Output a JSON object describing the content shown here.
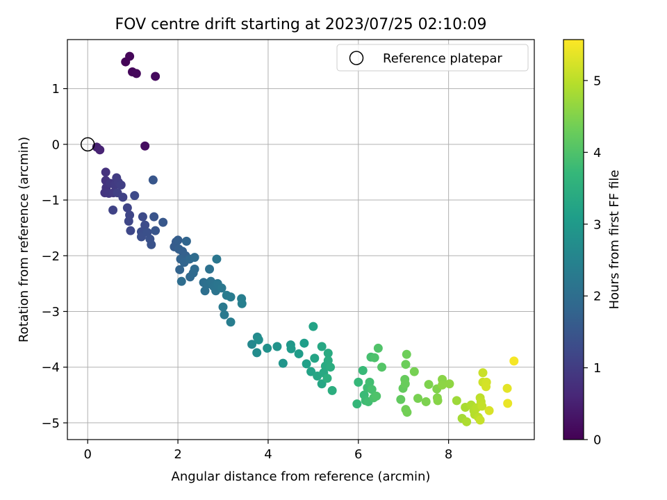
{
  "chart_data": {
    "type": "scatter",
    "title": "FOV centre drift starting at 2023/07/25 02:10:09",
    "xlabel": "Angular distance from reference (arcmin)",
    "ylabel": "Rotation from reference (arcmin)",
    "xlim": [
      -0.45,
      9.9
    ],
    "ylim": [
      -5.3,
      1.88
    ],
    "xticks": [
      0,
      2,
      4,
      6,
      8
    ],
    "yticks": [
      1,
      0,
      -1,
      -2,
      -3,
      -4,
      -5
    ],
    "xtick_labels": [
      "0",
      "2",
      "4",
      "6",
      "8"
    ],
    "ytick_labels": [
      "1",
      "0",
      "−1",
      "−2",
      "−3",
      "−4",
      "−5"
    ],
    "grid": true,
    "legend": {
      "position": "top-right",
      "entries": [
        "Reference platepar"
      ]
    },
    "reference_point": {
      "x": 0,
      "y": 0,
      "marker": "open-circle",
      "color": "#000000"
    },
    "colorbar": {
      "label": "Hours from first FF file",
      "range": [
        0,
        5.57
      ],
      "ticks": [
        0,
        1,
        2,
        3,
        4,
        5
      ],
      "tick_labels": [
        "0",
        "1",
        "2",
        "3",
        "4",
        "5"
      ],
      "colormap": "viridis",
      "stops": [
        "#440154",
        "#482878",
        "#3e4989",
        "#31688e",
        "#26828e",
        "#1f9e89",
        "#35b779",
        "#6ece58",
        "#b5de2b",
        "#fde725"
      ]
    },
    "series": [
      {
        "points": [
          {
            "x": 0.84,
            "y": 1.48,
            "t": 0.05
          },
          {
            "x": 0.93,
            "y": 1.58,
            "t": 0.08
          },
          {
            "x": 0.99,
            "y": 1.3,
            "t": 0.1
          },
          {
            "x": 1.08,
            "y": 1.27,
            "t": 0.12
          },
          {
            "x": 1.5,
            "y": 1.22,
            "t": 0.15
          },
          {
            "x": 1.27,
            "y": -0.03,
            "t": 0.2
          },
          {
            "x": 0.2,
            "y": -0.05,
            "t": 0.5
          },
          {
            "x": 0.27,
            "y": -0.1,
            "t": 0.55
          },
          {
            "x": 0.4,
            "y": -0.5,
            "t": 0.8
          },
          {
            "x": 0.4,
            "y": -0.65,
            "t": 0.82
          },
          {
            "x": 0.41,
            "y": -0.78,
            "t": 0.85
          },
          {
            "x": 0.38,
            "y": -0.87,
            "t": 0.87
          },
          {
            "x": 0.47,
            "y": -0.88,
            "t": 0.9
          },
          {
            "x": 0.5,
            "y": -0.7,
            "t": 0.92
          },
          {
            "x": 0.57,
            "y": -0.87,
            "t": 0.95
          },
          {
            "x": 0.6,
            "y": -0.73,
            "t": 0.97
          },
          {
            "x": 0.64,
            "y": -0.6,
            "t": 1.0
          },
          {
            "x": 0.68,
            "y": -0.68,
            "t": 1.02
          },
          {
            "x": 0.74,
            "y": -0.73,
            "t": 1.05
          },
          {
            "x": 0.66,
            "y": -0.87,
            "t": 1.07
          },
          {
            "x": 0.78,
            "y": -0.95,
            "t": 1.1
          },
          {
            "x": 0.56,
            "y": -1.18,
            "t": 1.12
          },
          {
            "x": 0.88,
            "y": -1.14,
            "t": 1.15
          },
          {
            "x": 0.93,
            "y": -1.27,
            "t": 1.18
          },
          {
            "x": 0.91,
            "y": -1.38,
            "t": 1.2
          },
          {
            "x": 0.95,
            "y": -1.55,
            "t": 1.22
          },
          {
            "x": 1.04,
            "y": -0.92,
            "t": 1.25
          },
          {
            "x": 1.22,
            "y": -1.3,
            "t": 1.28
          },
          {
            "x": 1.27,
            "y": -1.45,
            "t": 1.3
          },
          {
            "x": 1.19,
            "y": -1.57,
            "t": 1.32
          },
          {
            "x": 1.19,
            "y": -1.66,
            "t": 1.35
          },
          {
            "x": 1.32,
            "y": -1.58,
            "t": 1.37
          },
          {
            "x": 1.38,
            "y": -1.7,
            "t": 1.4
          },
          {
            "x": 1.41,
            "y": -1.8,
            "t": 1.42
          },
          {
            "x": 1.47,
            "y": -1.3,
            "t": 1.45
          },
          {
            "x": 1.5,
            "y": -1.55,
            "t": 1.47
          },
          {
            "x": 1.45,
            "y": -0.64,
            "t": 1.5
          },
          {
            "x": 1.67,
            "y": -1.4,
            "t": 1.52
          },
          {
            "x": 1.96,
            "y": -1.75,
            "t": 1.6
          },
          {
            "x": 1.92,
            "y": -1.84,
            "t": 1.62
          },
          {
            "x": 2.0,
            "y": -1.72,
            "t": 1.65
          },
          {
            "x": 2.02,
            "y": -1.88,
            "t": 1.67
          },
          {
            "x": 2.1,
            "y": -1.92,
            "t": 1.7
          },
          {
            "x": 2.17,
            "y": -2.0,
            "t": 1.72
          },
          {
            "x": 2.06,
            "y": -2.06,
            "t": 1.75
          },
          {
            "x": 2.04,
            "y": -2.25,
            "t": 1.77
          },
          {
            "x": 2.14,
            "y": -2.12,
            "t": 1.8
          },
          {
            "x": 2.19,
            "y": -1.74,
            "t": 1.82
          },
          {
            "x": 2.26,
            "y": -2.06,
            "t": 1.85
          },
          {
            "x": 2.27,
            "y": -2.38,
            "t": 1.87
          },
          {
            "x": 2.34,
            "y": -2.31,
            "t": 1.9
          },
          {
            "x": 2.37,
            "y": -2.24,
            "t": 1.92
          },
          {
            "x": 2.37,
            "y": -2.03,
            "t": 1.95
          },
          {
            "x": 2.08,
            "y": -2.46,
            "t": 1.97
          },
          {
            "x": 2.57,
            "y": -2.48,
            "t": 2.0
          },
          {
            "x": 2.6,
            "y": -2.63,
            "t": 2.02
          },
          {
            "x": 2.65,
            "y": -2.51,
            "t": 2.05
          },
          {
            "x": 2.7,
            "y": -2.24,
            "t": 2.07
          },
          {
            "x": 2.73,
            "y": -2.46,
            "t": 2.1
          },
          {
            "x": 2.79,
            "y": -2.55,
            "t": 2.12
          },
          {
            "x": 2.84,
            "y": -2.63,
            "t": 2.15
          },
          {
            "x": 2.88,
            "y": -2.5,
            "t": 2.17
          },
          {
            "x": 2.86,
            "y": -2.06,
            "t": 2.2
          },
          {
            "x": 2.97,
            "y": -2.58,
            "t": 2.22
          },
          {
            "x": 3.0,
            "y": -2.92,
            "t": 2.25
          },
          {
            "x": 3.03,
            "y": -3.06,
            "t": 2.27
          },
          {
            "x": 3.08,
            "y": -2.71,
            "t": 2.3
          },
          {
            "x": 3.17,
            "y": -2.74,
            "t": 2.32
          },
          {
            "x": 3.17,
            "y": -3.19,
            "t": 2.35
          },
          {
            "x": 3.41,
            "y": -2.77,
            "t": 2.37
          },
          {
            "x": 3.42,
            "y": -2.86,
            "t": 2.4
          },
          {
            "x": 3.64,
            "y": -3.59,
            "t": 2.6
          },
          {
            "x": 3.76,
            "y": -3.46,
            "t": 2.65
          },
          {
            "x": 3.75,
            "y": -3.74,
            "t": 2.7
          },
          {
            "x": 3.79,
            "y": -3.51,
            "t": 2.75
          },
          {
            "x": 3.98,
            "y": -3.66,
            "t": 2.8
          },
          {
            "x": 4.2,
            "y": -3.63,
            "t": 2.85
          },
          {
            "x": 4.33,
            "y": -3.93,
            "t": 2.9
          },
          {
            "x": 4.5,
            "y": -3.6,
            "t": 2.95
          },
          {
            "x": 4.51,
            "y": -3.67,
            "t": 3.0
          },
          {
            "x": 4.68,
            "y": -3.76,
            "t": 3.05
          },
          {
            "x": 4.8,
            "y": -3.57,
            "t": 3.1
          },
          {
            "x": 4.85,
            "y": -3.94,
            "t": 3.15
          },
          {
            "x": 4.95,
            "y": -4.08,
            "t": 3.2
          },
          {
            "x": 5.0,
            "y": -3.27,
            "t": 3.22
          },
          {
            "x": 5.03,
            "y": -3.84,
            "t": 3.25
          },
          {
            "x": 5.09,
            "y": -4.16,
            "t": 3.28
          },
          {
            "x": 5.19,
            "y": -4.3,
            "t": 3.3
          },
          {
            "x": 5.19,
            "y": -3.63,
            "t": 3.32
          },
          {
            "x": 5.23,
            "y": -4.1,
            "t": 3.35
          },
          {
            "x": 5.27,
            "y": -3.98,
            "t": 3.38
          },
          {
            "x": 5.33,
            "y": -3.75,
            "t": 3.4
          },
          {
            "x": 5.33,
            "y": -3.88,
            "t": 3.42
          },
          {
            "x": 5.38,
            "y": -4.0,
            "t": 3.45
          },
          {
            "x": 5.42,
            "y": -4.42,
            "t": 3.47
          },
          {
            "x": 5.31,
            "y": -4.2,
            "t": 3.5
          },
          {
            "x": 5.97,
            "y": -4.66,
            "t": 3.7
          },
          {
            "x": 6.0,
            "y": -4.27,
            "t": 3.72
          },
          {
            "x": 6.1,
            "y": -4.06,
            "t": 3.75
          },
          {
            "x": 6.13,
            "y": -4.5,
            "t": 3.77
          },
          {
            "x": 6.16,
            "y": -4.6,
            "t": 3.8
          },
          {
            "x": 6.2,
            "y": -4.37,
            "t": 3.82
          },
          {
            "x": 6.22,
            "y": -4.62,
            "t": 3.85
          },
          {
            "x": 6.25,
            "y": -4.27,
            "t": 3.87
          },
          {
            "x": 6.28,
            "y": -3.82,
            "t": 3.9
          },
          {
            "x": 6.3,
            "y": -4.4,
            "t": 3.92
          },
          {
            "x": 6.34,
            "y": -4.55,
            "t": 3.95
          },
          {
            "x": 6.36,
            "y": -3.83,
            "t": 3.97
          },
          {
            "x": 6.4,
            "y": -4.52,
            "t": 4.0
          },
          {
            "x": 6.44,
            "y": -3.66,
            "t": 4.02
          },
          {
            "x": 6.52,
            "y": -4.0,
            "t": 4.05
          },
          {
            "x": 6.94,
            "y": -4.58,
            "t": 4.2
          },
          {
            "x": 6.99,
            "y": -4.38,
            "t": 4.22
          },
          {
            "x": 7.03,
            "y": -4.22,
            "t": 4.25
          },
          {
            "x": 7.04,
            "y": -4.3,
            "t": 4.27
          },
          {
            "x": 7.05,
            "y": -3.95,
            "t": 4.3
          },
          {
            "x": 7.07,
            "y": -3.77,
            "t": 4.32
          },
          {
            "x": 7.05,
            "y": -4.76,
            "t": 4.35
          },
          {
            "x": 7.08,
            "y": -4.81,
            "t": 4.37
          },
          {
            "x": 7.24,
            "y": -4.08,
            "t": 4.4
          },
          {
            "x": 7.32,
            "y": -4.56,
            "t": 4.42
          },
          {
            "x": 7.5,
            "y": -4.62,
            "t": 4.45
          },
          {
            "x": 7.56,
            "y": -4.31,
            "t": 4.47
          },
          {
            "x": 7.74,
            "y": -4.39,
            "t": 4.5
          },
          {
            "x": 7.75,
            "y": -4.55,
            "t": 4.52
          },
          {
            "x": 7.76,
            "y": -4.6,
            "t": 4.55
          },
          {
            "x": 7.86,
            "y": -4.22,
            "t": 4.57
          },
          {
            "x": 7.86,
            "y": -4.32,
            "t": 4.6
          },
          {
            "x": 8.02,
            "y": -4.3,
            "t": 4.62
          },
          {
            "x": 8.18,
            "y": -4.6,
            "t": 4.75
          },
          {
            "x": 8.3,
            "y": -4.92,
            "t": 4.8
          },
          {
            "x": 8.37,
            "y": -4.72,
            "t": 4.85
          },
          {
            "x": 8.4,
            "y": -4.98,
            "t": 4.88
          },
          {
            "x": 8.5,
            "y": -4.68,
            "t": 4.9
          },
          {
            "x": 8.56,
            "y": -4.78,
            "t": 4.93
          },
          {
            "x": 8.58,
            "y": -4.85,
            "t": 4.95
          },
          {
            "x": 8.62,
            "y": -4.73,
            "t": 4.98
          },
          {
            "x": 8.66,
            "y": -4.9,
            "t": 5.0
          },
          {
            "x": 8.7,
            "y": -4.55,
            "t": 5.02
          },
          {
            "x": 8.72,
            "y": -4.62,
            "t": 5.05
          },
          {
            "x": 8.74,
            "y": -4.7,
            "t": 5.07
          },
          {
            "x": 8.7,
            "y": -4.95,
            "t": 5.1
          },
          {
            "x": 8.76,
            "y": -4.1,
            "t": 5.12
          },
          {
            "x": 8.76,
            "y": -4.27,
            "t": 5.15
          },
          {
            "x": 8.84,
            "y": -4.27,
            "t": 5.2
          },
          {
            "x": 8.83,
            "y": -4.35,
            "t": 5.22
          },
          {
            "x": 8.9,
            "y": -4.78,
            "t": 5.25
          },
          {
            "x": 9.3,
            "y": -4.38,
            "t": 5.35
          },
          {
            "x": 9.31,
            "y": -4.65,
            "t": 5.4
          },
          {
            "x": 9.45,
            "y": -3.89,
            "t": 5.5
          }
        ]
      }
    ]
  }
}
